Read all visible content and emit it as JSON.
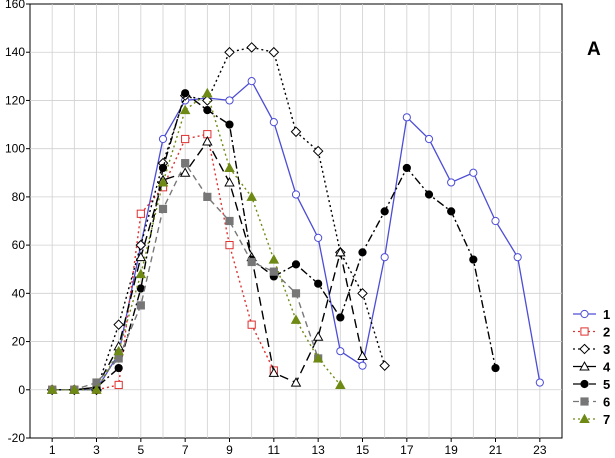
{
  "chart_data": {
    "type": "line",
    "title": "",
    "panel_label": "A",
    "xlabel": "",
    "ylabel": "",
    "xlim": [
      0,
      24
    ],
    "ylim": [
      -20,
      160
    ],
    "x_ticks": [
      1,
      3,
      5,
      7,
      9,
      11,
      13,
      15,
      17,
      19,
      21,
      23
    ],
    "y_ticks": [
      -20,
      0,
      20,
      40,
      60,
      80,
      100,
      120,
      140,
      160
    ],
    "grid": true,
    "legend_position": "right-bottom",
    "series": [
      {
        "name": "1",
        "color": "#4d4dd6",
        "dash": "solid",
        "marker": "circle-open",
        "x": [
          1,
          2,
          3,
          4,
          5,
          6,
          7,
          8,
          9,
          10,
          11,
          12,
          13,
          14,
          15,
          16,
          17,
          18,
          19,
          20,
          21,
          22,
          23
        ],
        "y": [
          0,
          0,
          0,
          15,
          60,
          104,
          120,
          121,
          120,
          128,
          111,
          81,
          63,
          16,
          10,
          55,
          113,
          104,
          86,
          90,
          70,
          55,
          3
        ]
      },
      {
        "name": "2",
        "color": "#e03030",
        "dash": "dotted",
        "marker": "square-open",
        "x": [
          1,
          2,
          3,
          4,
          5,
          6,
          7,
          8,
          9,
          10,
          11
        ],
        "y": [
          0,
          0,
          0,
          2,
          73,
          84,
          104,
          106,
          60,
          27,
          8
        ]
      },
      {
        "name": "3",
        "color": "#000000",
        "dash": "dotted",
        "marker": "diamond-open",
        "x": [
          1,
          2,
          3,
          4,
          5,
          6,
          7,
          8,
          9,
          10,
          11,
          12,
          13,
          14,
          15,
          16
        ],
        "y": [
          0,
          0,
          0,
          27,
          60,
          94,
          122,
          120,
          140,
          142,
          140,
          107,
          99,
          57,
          40,
          10
        ]
      },
      {
        "name": "4",
        "color": "#000000",
        "dash": "longdash",
        "marker": "triangle-open",
        "x": [
          1,
          2,
          3,
          4,
          5,
          6,
          7,
          8,
          9,
          10,
          11,
          12,
          13,
          14,
          15
        ],
        "y": [
          0,
          0,
          1,
          18,
          55,
          87,
          90,
          103,
          86,
          55,
          7,
          3,
          22,
          57,
          14
        ]
      },
      {
        "name": "5",
        "color": "#000000",
        "dash": "dashdot",
        "marker": "circle-filled",
        "x": [
          1,
          2,
          3,
          4,
          5,
          6,
          7,
          8,
          9,
          10,
          11,
          12,
          13,
          14,
          15,
          16,
          17,
          18,
          19,
          20,
          21
        ],
        "y": [
          0,
          0,
          1,
          9,
          42,
          92,
          123,
          116,
          110,
          54,
          47,
          52,
          44,
          30,
          57,
          74,
          92,
          81,
          74,
          54,
          9
        ]
      },
      {
        "name": "6",
        "color": "#777777",
        "dash": "dashed",
        "marker": "square-filled",
        "x": [
          1,
          2,
          3,
          4,
          5,
          6,
          7,
          8,
          9,
          10,
          11,
          12,
          13
        ],
        "y": [
          0,
          0,
          3,
          13,
          35,
          75,
          94,
          80,
          70,
          53,
          49,
          40,
          13
        ]
      },
      {
        "name": "7",
        "color": "#6e8a14",
        "dash": "dotted",
        "marker": "triangle-filled",
        "x": [
          1,
          2,
          3,
          4,
          5,
          6,
          7,
          8,
          9,
          10,
          11,
          12,
          13,
          14
        ],
        "y": [
          0,
          0,
          0,
          16,
          48,
          86,
          116,
          123,
          92,
          80,
          54,
          29,
          13,
          2
        ]
      }
    ]
  }
}
